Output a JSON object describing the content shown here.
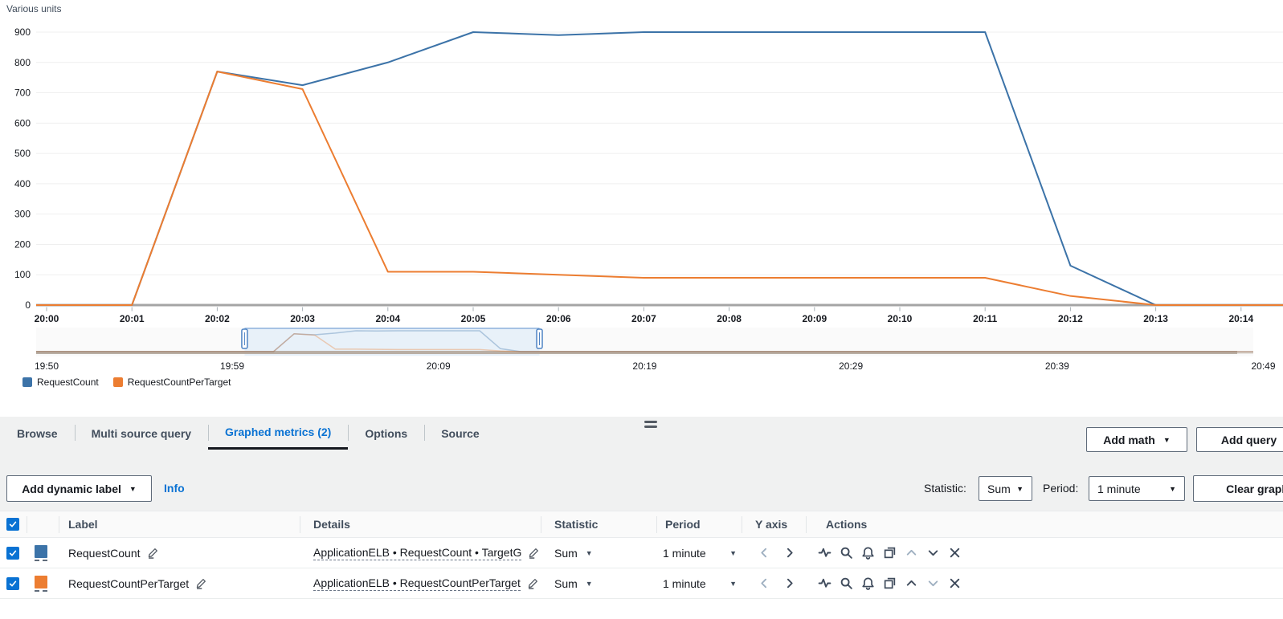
{
  "chart_data": {
    "type": "line",
    "title": "",
    "ylabel": "Various units",
    "xlabel": "",
    "x": [
      "20:00",
      "20:01",
      "20:02",
      "20:03",
      "20:04",
      "20:05",
      "20:06",
      "20:07",
      "20:08",
      "20:09",
      "20:10",
      "20:11",
      "20:12",
      "20:13",
      "20:14"
    ],
    "series": [
      {
        "name": "RequestCount",
        "color": "#3c73a8",
        "values": [
          0,
          0,
          770,
          725,
          800,
          900,
          890,
          900,
          900,
          900,
          900,
          900,
          130,
          0,
          0
        ]
      },
      {
        "name": "RequestCountPerTarget",
        "color": "#ec7d31",
        "values": [
          0,
          0,
          770,
          712,
          110,
          110,
          100,
          90,
          90,
          90,
          90,
          90,
          30,
          0,
          0
        ]
      }
    ],
    "ylim": [
      0,
      900
    ],
    "y_tick_step": 100,
    "grid": true,
    "legend_position": "bottom-left",
    "brush": {
      "labels": [
        {
          "text": "19:50",
          "t": 0
        },
        {
          "text": "19:59",
          "t": 9
        },
        {
          "text": "20:09",
          "t": 19
        },
        {
          "text": "20:19",
          "t": 29
        },
        {
          "text": "20:29",
          "t": 39
        },
        {
          "text": "20:39",
          "t": 49
        },
        {
          "text": "20:49",
          "t": 59
        }
      ],
      "total_minutes": 59,
      "series_start_t": 10,
      "selection": {
        "start_t": 9.6,
        "end_t": 23.9
      }
    }
  },
  "icons": {
    "caret_down": "▼"
  },
  "colors": {
    "accent_blue": "#0972d3",
    "series_blue": "#3c73a8",
    "series_orange": "#ec7d31",
    "tab_underline": "#16191f"
  },
  "tabs": {
    "items": [
      {
        "label": "Browse"
      },
      {
        "label": "Multi source query"
      },
      {
        "label": "Graphed metrics (2)"
      },
      {
        "label": "Options"
      },
      {
        "label": "Source"
      }
    ],
    "active_index": 2
  },
  "toolbar": {
    "add_math": "Add math",
    "add_query": "Add query"
  },
  "controls": {
    "add_dynamic_label": "Add dynamic label",
    "info": "Info",
    "statistic_label": "Statistic:",
    "statistic_value": "Sum",
    "period_label": "Period:",
    "period_value": "1 minute",
    "clear_graph": "Clear graph"
  },
  "table": {
    "headers": {
      "label": "Label",
      "details": "Details",
      "statistic": "Statistic",
      "period": "Period",
      "y_axis": "Y axis",
      "actions": "Actions"
    },
    "rows": [
      {
        "checked": true,
        "color": "#3c73a8",
        "label": "RequestCount",
        "details": "ApplicationELB • RequestCount • TargetG",
        "statistic": "Sum",
        "period": "1 minute"
      },
      {
        "checked": true,
        "color": "#ec7d31",
        "label": "RequestCountPerTarget",
        "details": "ApplicationELB • RequestCountPerTarget",
        "statistic": "Sum",
        "period": "1 minute"
      }
    ]
  }
}
